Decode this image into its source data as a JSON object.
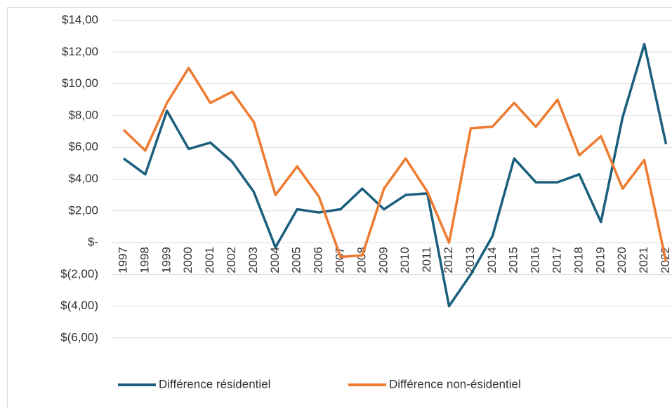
{
  "chart_data": {
    "type": "line",
    "categories": [
      "1997",
      "1998",
      "1999",
      "2000",
      "2001",
      "2002",
      "2003",
      "2004",
      "2005",
      "2006",
      "2007",
      "2008",
      "2009",
      "2010",
      "2011",
      "2012",
      "2013",
      "2014",
      "2015",
      "2016",
      "2017",
      "2018",
      "2019",
      "2020",
      "2021",
      "2022"
    ],
    "series": [
      {
        "name": "Différence résidentiel",
        "color": "#1b5f7e",
        "values": [
          5.3,
          4.3,
          8.3,
          5.9,
          6.3,
          5.1,
          3.2,
          -0.3,
          2.1,
          1.9,
          2.1,
          3.4,
          2.1,
          3.0,
          3.1,
          -4.0,
          -2.0,
          0.4,
          5.3,
          3.8,
          3.8,
          4.3,
          1.3,
          7.9,
          12.5,
          6.2
        ]
      },
      {
        "name": "Différence  non-ésidentiel",
        "color": "#ee7b32",
        "values": [
          7.1,
          5.8,
          8.8,
          11.0,
          8.8,
          9.5,
          7.6,
          3.0,
          4.8,
          2.9,
          -0.9,
          -0.8,
          3.4,
          5.3,
          3.2,
          0.0,
          7.2,
          7.3,
          8.8,
          7.3,
          9.0,
          5.5,
          6.7,
          3.4,
          5.2,
          -1.2
        ]
      }
    ],
    "ylim": [
      -6,
      14
    ],
    "yticks": [
      {
        "value": -6,
        "label": "$(6,00)"
      },
      {
        "value": -4,
        "label": "$(4,00)"
      },
      {
        "value": -2,
        "label": "$(2,00)"
      },
      {
        "value": 0,
        "label": "$-"
      },
      {
        "value": 2,
        "label": "$2,00"
      },
      {
        "value": 4,
        "label": "$4,00"
      },
      {
        "value": 6,
        "label": "$6,00"
      },
      {
        "value": 8,
        "label": "$8,00"
      },
      {
        "value": 10,
        "label": "$10,00"
      },
      {
        "value": 12,
        "label": "$12,00"
      },
      {
        "value": 14,
        "label": "$14,00"
      }
    ],
    "grid": true,
    "legend": "bottom"
  }
}
